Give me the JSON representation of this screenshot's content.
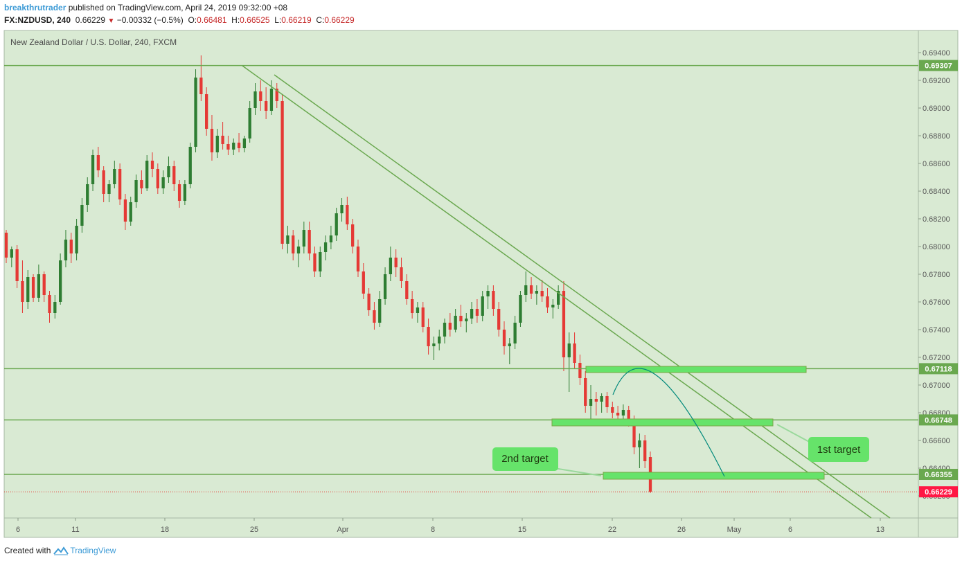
{
  "header": {
    "author": "breakthrutrader",
    "published_text": "published on TradingView.com, April 24, 2019 09:32:00 +08",
    "symbol": "FX:NZDUSD, 240",
    "last": "0.66229",
    "change": "−0.00332 (−0.5%)",
    "o_label": "O:",
    "o_val": "0.66481",
    "h_label": "H:",
    "h_val": "0.66525",
    "l_label": "L:",
    "l_val": "0.66219",
    "c_label": "C:",
    "c_val": "0.66229"
  },
  "footer": {
    "created_with": "Created with",
    "brand": "TradingView"
  },
  "colors": {
    "background": "#d9ead3",
    "up": "#2e7d32",
    "down": "#e53935",
    "line": "#6aa84f",
    "zone_fill": "#66e36a",
    "zone_border": "#7aa646",
    "curve": "#00897b",
    "label_bg": "#66e36a",
    "price_tag_green": "#6aa84f",
    "price_tag_red": "#ff1744"
  },
  "chart_data": {
    "type": "candlestick",
    "title": "New Zealand Dollar / U.S. Dollar, 240, FXCM",
    "ylim": [
      0.662,
      0.695
    ],
    "y_ticks": [
      "0.69400",
      "0.69200",
      "0.69000",
      "0.68800",
      "0.68600",
      "0.68400",
      "0.68200",
      "0.68000",
      "0.67800",
      "0.67600",
      "0.67400",
      "0.67200",
      "0.67000",
      "0.66800",
      "0.66600",
      "0.66400",
      "0.66200"
    ],
    "x_ticks": [
      "6",
      "11",
      "18",
      "25",
      "Apr",
      "8",
      "15",
      "22",
      "26",
      "May",
      "6",
      "13"
    ],
    "horizontal_levels": [
      {
        "value": 0.69307,
        "label": "0.69307"
      },
      {
        "value": 0.67118,
        "label": "0.67118"
      },
      {
        "value": 0.66748,
        "label": "0.66748"
      },
      {
        "value": 0.66355,
        "label": "0.66355"
      }
    ],
    "last_price": {
      "value": 0.66229,
      "label": "0.66229"
    },
    "zones": [
      {
        "x_from": "Apr 19",
        "x_to": "May 7",
        "top": 0.67148,
        "bottom": 0.67098
      },
      {
        "x_from": "Apr 17",
        "x_to": "May 5",
        "top": 0.66778,
        "bottom": 0.66718
      },
      {
        "x_from": "Apr 21",
        "x_to": "May 9",
        "top": 0.66395,
        "bottom": 0.66335
      }
    ],
    "annotations": [
      {
        "text": "2nd target"
      },
      {
        "text": "1st target"
      }
    ],
    "candles": [
      [
        0.681,
        0.6812,
        0.6788,
        0.6792
      ],
      [
        0.6792,
        0.68,
        0.6785,
        0.6798
      ],
      [
        0.6798,
        0.6801,
        0.677,
        0.6775
      ],
      [
        0.6775,
        0.679,
        0.6752,
        0.676
      ],
      [
        0.676,
        0.6783,
        0.6755,
        0.6778
      ],
      [
        0.6778,
        0.678,
        0.676,
        0.6763
      ],
      [
        0.6763,
        0.6787,
        0.676,
        0.678
      ],
      [
        0.678,
        0.6782,
        0.676,
        0.6765
      ],
      [
        0.6765,
        0.6768,
        0.6745,
        0.6752
      ],
      [
        0.6752,
        0.6765,
        0.6748,
        0.676
      ],
      [
        0.676,
        0.6795,
        0.6758,
        0.679
      ],
      [
        0.679,
        0.6812,
        0.6785,
        0.6805
      ],
      [
        0.6805,
        0.681,
        0.6788,
        0.6795
      ],
      [
        0.6795,
        0.682,
        0.679,
        0.6815
      ],
      [
        0.6815,
        0.6835,
        0.681,
        0.683
      ],
      [
        0.683,
        0.685,
        0.6825,
        0.6845
      ],
      [
        0.6845,
        0.687,
        0.684,
        0.6866
      ],
      [
        0.6866,
        0.6872,
        0.685,
        0.6855
      ],
      [
        0.6855,
        0.6858,
        0.6832,
        0.6838
      ],
      [
        0.6838,
        0.6848,
        0.6832,
        0.6845
      ],
      [
        0.6845,
        0.6862,
        0.6842,
        0.6856
      ],
      [
        0.6856,
        0.686,
        0.683,
        0.6834
      ],
      [
        0.6834,
        0.6838,
        0.6812,
        0.6818
      ],
      [
        0.6818,
        0.6836,
        0.6815,
        0.6832
      ],
      [
        0.6832,
        0.6852,
        0.6828,
        0.6848
      ],
      [
        0.6848,
        0.6855,
        0.6838,
        0.6842
      ],
      [
        0.6842,
        0.6866,
        0.684,
        0.6862
      ],
      [
        0.6862,
        0.6868,
        0.685,
        0.6856
      ],
      [
        0.6856,
        0.686,
        0.6838,
        0.6842
      ],
      [
        0.6842,
        0.6855,
        0.6838,
        0.685
      ],
      [
        0.685,
        0.6865,
        0.6846,
        0.6858
      ],
      [
        0.6858,
        0.6862,
        0.684,
        0.6845
      ],
      [
        0.6845,
        0.6848,
        0.6828,
        0.6833
      ],
      [
        0.6833,
        0.6848,
        0.683,
        0.6845
      ],
      [
        0.6845,
        0.6875,
        0.6842,
        0.6872
      ],
      [
        0.6872,
        0.6928,
        0.6868,
        0.6922
      ],
      [
        0.6922,
        0.6938,
        0.6905,
        0.691
      ],
      [
        0.691,
        0.6915,
        0.688,
        0.6885
      ],
      [
        0.6885,
        0.6895,
        0.6862,
        0.6868
      ],
      [
        0.6868,
        0.6885,
        0.6864,
        0.688
      ],
      [
        0.688,
        0.689,
        0.687,
        0.6874
      ],
      [
        0.6874,
        0.688,
        0.6866,
        0.687
      ],
      [
        0.687,
        0.6878,
        0.6866,
        0.6875
      ],
      [
        0.6875,
        0.6882,
        0.6868,
        0.6871
      ],
      [
        0.6871,
        0.688,
        0.6868,
        0.6878
      ],
      [
        0.6878,
        0.6905,
        0.6875,
        0.69
      ],
      [
        0.69,
        0.6918,
        0.6895,
        0.6912
      ],
      [
        0.6912,
        0.692,
        0.6898,
        0.6905
      ],
      [
        0.6905,
        0.6915,
        0.6892,
        0.6898
      ],
      [
        0.6898,
        0.692,
        0.6895,
        0.6914
      ],
      [
        0.6914,
        0.6918,
        0.69,
        0.6905
      ],
      [
        0.6905,
        0.691,
        0.6798,
        0.6802
      ],
      [
        0.6802,
        0.6815,
        0.6795,
        0.6808
      ],
      [
        0.6808,
        0.6812,
        0.679,
        0.6795
      ],
      [
        0.6795,
        0.6805,
        0.6785,
        0.68
      ],
      [
        0.68,
        0.6818,
        0.6795,
        0.6812
      ],
      [
        0.6812,
        0.6818,
        0.679,
        0.6795
      ],
      [
        0.6795,
        0.68,
        0.6778,
        0.6782
      ],
      [
        0.6782,
        0.68,
        0.6778,
        0.6796
      ],
      [
        0.6796,
        0.6808,
        0.679,
        0.6803
      ],
      [
        0.6803,
        0.6815,
        0.6798,
        0.6808
      ],
      [
        0.6808,
        0.6828,
        0.6804,
        0.6824
      ],
      [
        0.6824,
        0.6835,
        0.6818,
        0.683
      ],
      [
        0.683,
        0.6836,
        0.6812,
        0.6816
      ],
      [
        0.6816,
        0.682,
        0.6795,
        0.68
      ],
      [
        0.68,
        0.6805,
        0.6778,
        0.6782
      ],
      [
        0.6782,
        0.6788,
        0.6762,
        0.6766
      ],
      [
        0.6766,
        0.677,
        0.675,
        0.6754
      ],
      [
        0.6754,
        0.676,
        0.674,
        0.6745
      ],
      [
        0.6745,
        0.6768,
        0.6742,
        0.6762
      ],
      [
        0.6762,
        0.6785,
        0.6758,
        0.678
      ],
      [
        0.678,
        0.68,
        0.6775,
        0.6792
      ],
      [
        0.6792,
        0.6798,
        0.6778,
        0.6785
      ],
      [
        0.6785,
        0.6792,
        0.677,
        0.6775
      ],
      [
        0.6775,
        0.678,
        0.6758,
        0.6762
      ],
      [
        0.6762,
        0.6768,
        0.6748,
        0.6752
      ],
      [
        0.6752,
        0.676,
        0.6745,
        0.6756
      ],
      [
        0.6756,
        0.676,
        0.6738,
        0.6742
      ],
      [
        0.6742,
        0.6748,
        0.6722,
        0.6728
      ],
      [
        0.6728,
        0.6735,
        0.6718,
        0.673
      ],
      [
        0.673,
        0.674,
        0.6725,
        0.6735
      ],
      [
        0.6735,
        0.6748,
        0.673,
        0.6745
      ],
      [
        0.6745,
        0.6752,
        0.6735,
        0.674
      ],
      [
        0.674,
        0.6755,
        0.6738,
        0.675
      ],
      [
        0.675,
        0.6758,
        0.6742,
        0.6746
      ],
      [
        0.6746,
        0.6752,
        0.6738,
        0.6748
      ],
      [
        0.6748,
        0.676,
        0.6744,
        0.6755
      ],
      [
        0.6755,
        0.6762,
        0.6745,
        0.675
      ],
      [
        0.675,
        0.6768,
        0.6746,
        0.6764
      ],
      [
        0.6764,
        0.6772,
        0.6755,
        0.6768
      ],
      [
        0.6768,
        0.6772,
        0.675,
        0.6755
      ],
      [
        0.6755,
        0.676,
        0.6735,
        0.674
      ],
      [
        0.674,
        0.6746,
        0.6722,
        0.6728
      ],
      [
        0.6728,
        0.6734,
        0.6715,
        0.673
      ],
      [
        0.673,
        0.675,
        0.6726,
        0.6745
      ],
      [
        0.6745,
        0.6768,
        0.6742,
        0.6765
      ],
      [
        0.6765,
        0.6782,
        0.676,
        0.6772
      ],
      [
        0.6772,
        0.6778,
        0.6762,
        0.6766
      ],
      [
        0.6766,
        0.6772,
        0.6758,
        0.6768
      ],
      [
        0.6768,
        0.6776,
        0.676,
        0.6764
      ],
      [
        0.6764,
        0.677,
        0.6752,
        0.6756
      ],
      [
        0.6756,
        0.6762,
        0.6748,
        0.6758
      ],
      [
        0.6758,
        0.6772,
        0.6755,
        0.6768
      ],
      [
        0.6768,
        0.6775,
        0.671,
        0.672
      ],
      [
        0.672,
        0.6738,
        0.6695,
        0.673
      ],
      [
        0.673,
        0.6738,
        0.6712,
        0.6716
      ],
      [
        0.6716,
        0.6722,
        0.67,
        0.6705
      ],
      [
        0.6705,
        0.671,
        0.668,
        0.6685
      ],
      [
        0.6685,
        0.67,
        0.6675,
        0.669
      ],
      [
        0.669,
        0.6695,
        0.6678,
        0.6688
      ],
      [
        0.6688,
        0.6694,
        0.668,
        0.6692
      ],
      [
        0.6692,
        0.6695,
        0.668,
        0.6684
      ],
      [
        0.6684,
        0.6688,
        0.6676,
        0.668
      ],
      [
        0.668,
        0.6685,
        0.6674,
        0.6678
      ],
      [
        0.6678,
        0.6686,
        0.6675,
        0.6682
      ],
      [
        0.6682,
        0.6685,
        0.667,
        0.6674
      ],
      [
        0.6674,
        0.6678,
        0.665,
        0.6655
      ],
      [
        0.6655,
        0.6665,
        0.664,
        0.666
      ],
      [
        0.666,
        0.6664,
        0.664,
        0.6645
      ],
      [
        0.6648,
        0.6652,
        0.6622,
        0.6623
      ]
    ]
  }
}
